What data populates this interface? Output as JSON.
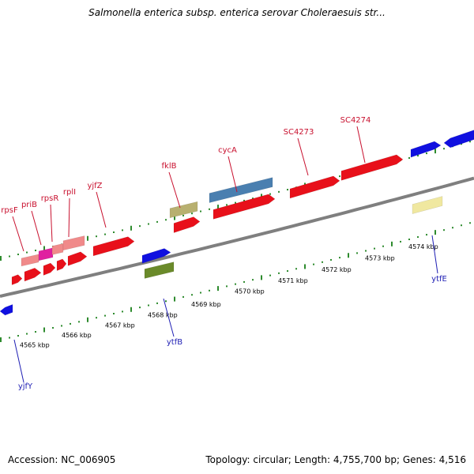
{
  "title": "Salmonella enterica subsp. enterica serovar Choleraesuis str...",
  "footer": {
    "accession": "Accession: NC_006905",
    "stats": "Topology: circular; Length: 4,755,700 bp; Genes: 4,516"
  },
  "colors": {
    "backbone": "#7f7f7f",
    "tick": "#2e8b2e",
    "forward_label": "#c8102e",
    "reverse_label": "#1f1fb4",
    "gene_red": "#e8101a",
    "gene_blue": "#1010e0",
    "gene_pink": "#f08a8a",
    "gene_magenta": "#e020a0",
    "gene_khaki": "#b8b070",
    "gene_steelblue": "#4a7fb0",
    "gene_olive": "#6a8a2a",
    "gene_paleyellow": "#f0e8a0"
  },
  "kbp_labels": [
    "4565 kbp",
    "4566 kbp",
    "4567 kbp",
    "4568 kbp",
    "4569 kbp",
    "4570 kbp",
    "4571 kbp",
    "4572 kbp",
    "4573 kbp",
    "4574 kbp"
  ],
  "forward_gene_labels": [
    "rpsF",
    "priB",
    "rpsR",
    "rplI",
    "yjfZ",
    "fklB",
    "cycA",
    "SC4273",
    "SC4274"
  ],
  "reverse_gene_labels": [
    "yjfY",
    "ytfB",
    "ytfE"
  ]
}
